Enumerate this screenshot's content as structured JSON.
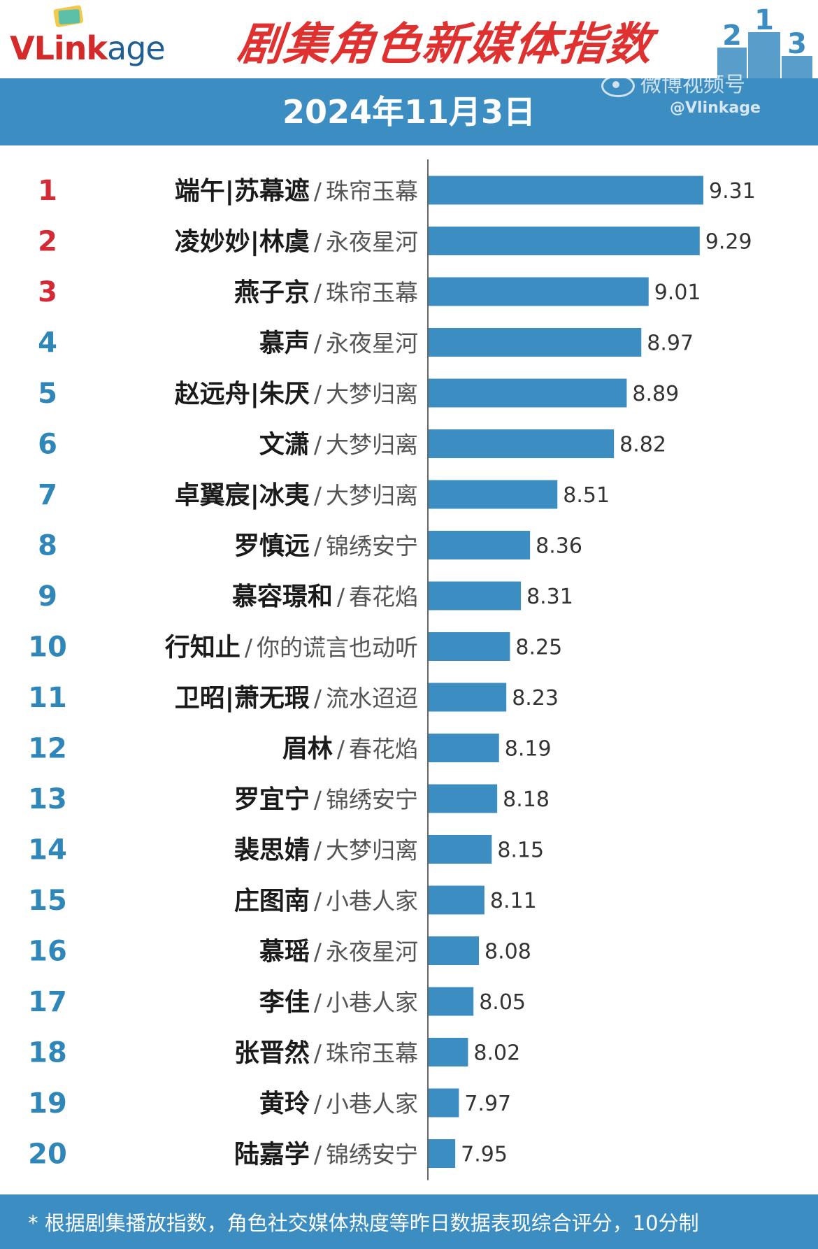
{
  "header": {
    "logo": "VLinkage",
    "title": "剧集角色新媒体指数",
    "date": "2024年11月3日",
    "watermark_platform": "微博视频号",
    "watermark_handle": "@Vlinkage"
  },
  "colors": {
    "bar": "#3c8dc1",
    "header_band": "#3c8dc1",
    "title": "#e03131",
    "rank_top3": "#d42a35",
    "rank_other": "#2f86b8"
  },
  "chart_data": {
    "type": "bar",
    "orientation": "horizontal",
    "title": "剧集角色新媒体指数",
    "categories": [
      "端午|苏幕遮 / 珠帘玉幕",
      "凌妙妙|林虞 / 永夜星河",
      "燕子京 / 珠帘玉幕",
      "慕声 / 永夜星河",
      "赵远舟|朱厌 / 大梦归离",
      "文潇 / 大梦归离",
      "卓翼宸|冰夷 / 大梦归离",
      "罗慎远 / 锦绣安宁",
      "慕容璟和 / 春花焰",
      "行知止 / 你的谎言也动听",
      "卫昭|萧无瑕 / 流水迢迢",
      "眉林 / 春花焰",
      "罗宜宁 / 锦绣安宁",
      "裴思婧 / 大梦归离",
      "庄图南 / 小巷人家",
      "慕瑶 / 永夜星河",
      "李佳 / 小巷人家",
      "张晋然 / 珠帘玉幕",
      "黄玲 / 小巷人家",
      "陆嘉学 / 锦绣安宁"
    ],
    "rows": [
      {
        "rank": "1",
        "character": "端午|苏幕遮",
        "drama": "珠帘玉幕",
        "value": 9.31,
        "label": "9.31"
      },
      {
        "rank": "2",
        "character": "凌妙妙|林虞",
        "drama": "永夜星河",
        "value": 9.29,
        "label": "9.29"
      },
      {
        "rank": "3",
        "character": "燕子京",
        "drama": "珠帘玉幕",
        "value": 9.01,
        "label": "9.01"
      },
      {
        "rank": "4",
        "character": "慕声",
        "drama": "永夜星河",
        "value": 8.97,
        "label": "8.97"
      },
      {
        "rank": "5",
        "character": "赵远舟|朱厌",
        "drama": "大梦归离",
        "value": 8.89,
        "label": "8.89"
      },
      {
        "rank": "6",
        "character": "文潇",
        "drama": "大梦归离",
        "value": 8.82,
        "label": "8.82"
      },
      {
        "rank": "7",
        "character": "卓翼宸|冰夷",
        "drama": "大梦归离",
        "value": 8.51,
        "label": "8.51"
      },
      {
        "rank": "8",
        "character": "罗慎远",
        "drama": "锦绣安宁",
        "value": 8.36,
        "label": "8.36"
      },
      {
        "rank": "9",
        "character": "慕容璟和",
        "drama": "春花焰",
        "value": 8.31,
        "label": "8.31"
      },
      {
        "rank": "10",
        "character": "行知止",
        "drama": "你的谎言也动听",
        "value": 8.25,
        "label": "8.25"
      },
      {
        "rank": "11",
        "character": "卫昭|萧无瑕",
        "drama": "流水迢迢",
        "value": 8.23,
        "label": "8.23"
      },
      {
        "rank": "12",
        "character": "眉林",
        "drama": "春花焰",
        "value": 8.19,
        "label": "8.19"
      },
      {
        "rank": "13",
        "character": "罗宜宁",
        "drama": "锦绣安宁",
        "value": 8.18,
        "label": "8.18"
      },
      {
        "rank": "14",
        "character": "裴思婧",
        "drama": "大梦归离",
        "value": 8.15,
        "label": "8.15"
      },
      {
        "rank": "15",
        "character": "庄图南",
        "drama": "小巷人家",
        "value": 8.11,
        "label": "8.11"
      },
      {
        "rank": "16",
        "character": "慕瑶",
        "drama": "永夜星河",
        "value": 8.08,
        "label": "8.08"
      },
      {
        "rank": "17",
        "character": "李佳",
        "drama": "小巷人家",
        "value": 8.05,
        "label": "8.05"
      },
      {
        "rank": "18",
        "character": "张晋然",
        "drama": "珠帘玉幕",
        "value": 8.02,
        "label": "8.02"
      },
      {
        "rank": "19",
        "character": "黄玲",
        "drama": "小巷人家",
        "value": 7.97,
        "label": "7.97"
      },
      {
        "rank": "20",
        "character": "陆嘉学",
        "drama": "锦绣安宁",
        "value": 7.95,
        "label": "7.95"
      }
    ],
    "values": [
      9.31,
      9.29,
      9.01,
      8.97,
      8.89,
      8.82,
      8.51,
      8.36,
      8.31,
      8.25,
      8.23,
      8.19,
      8.18,
      8.15,
      8.11,
      8.08,
      8.05,
      8.02,
      7.97,
      7.95
    ],
    "xlim": [
      7.8,
      9.31
    ],
    "grid": false,
    "legend": "none"
  },
  "footer": {
    "note": "* 根据剧集播放指数，角色社交媒体热度等昨日数据表现综合评分，10分制"
  }
}
